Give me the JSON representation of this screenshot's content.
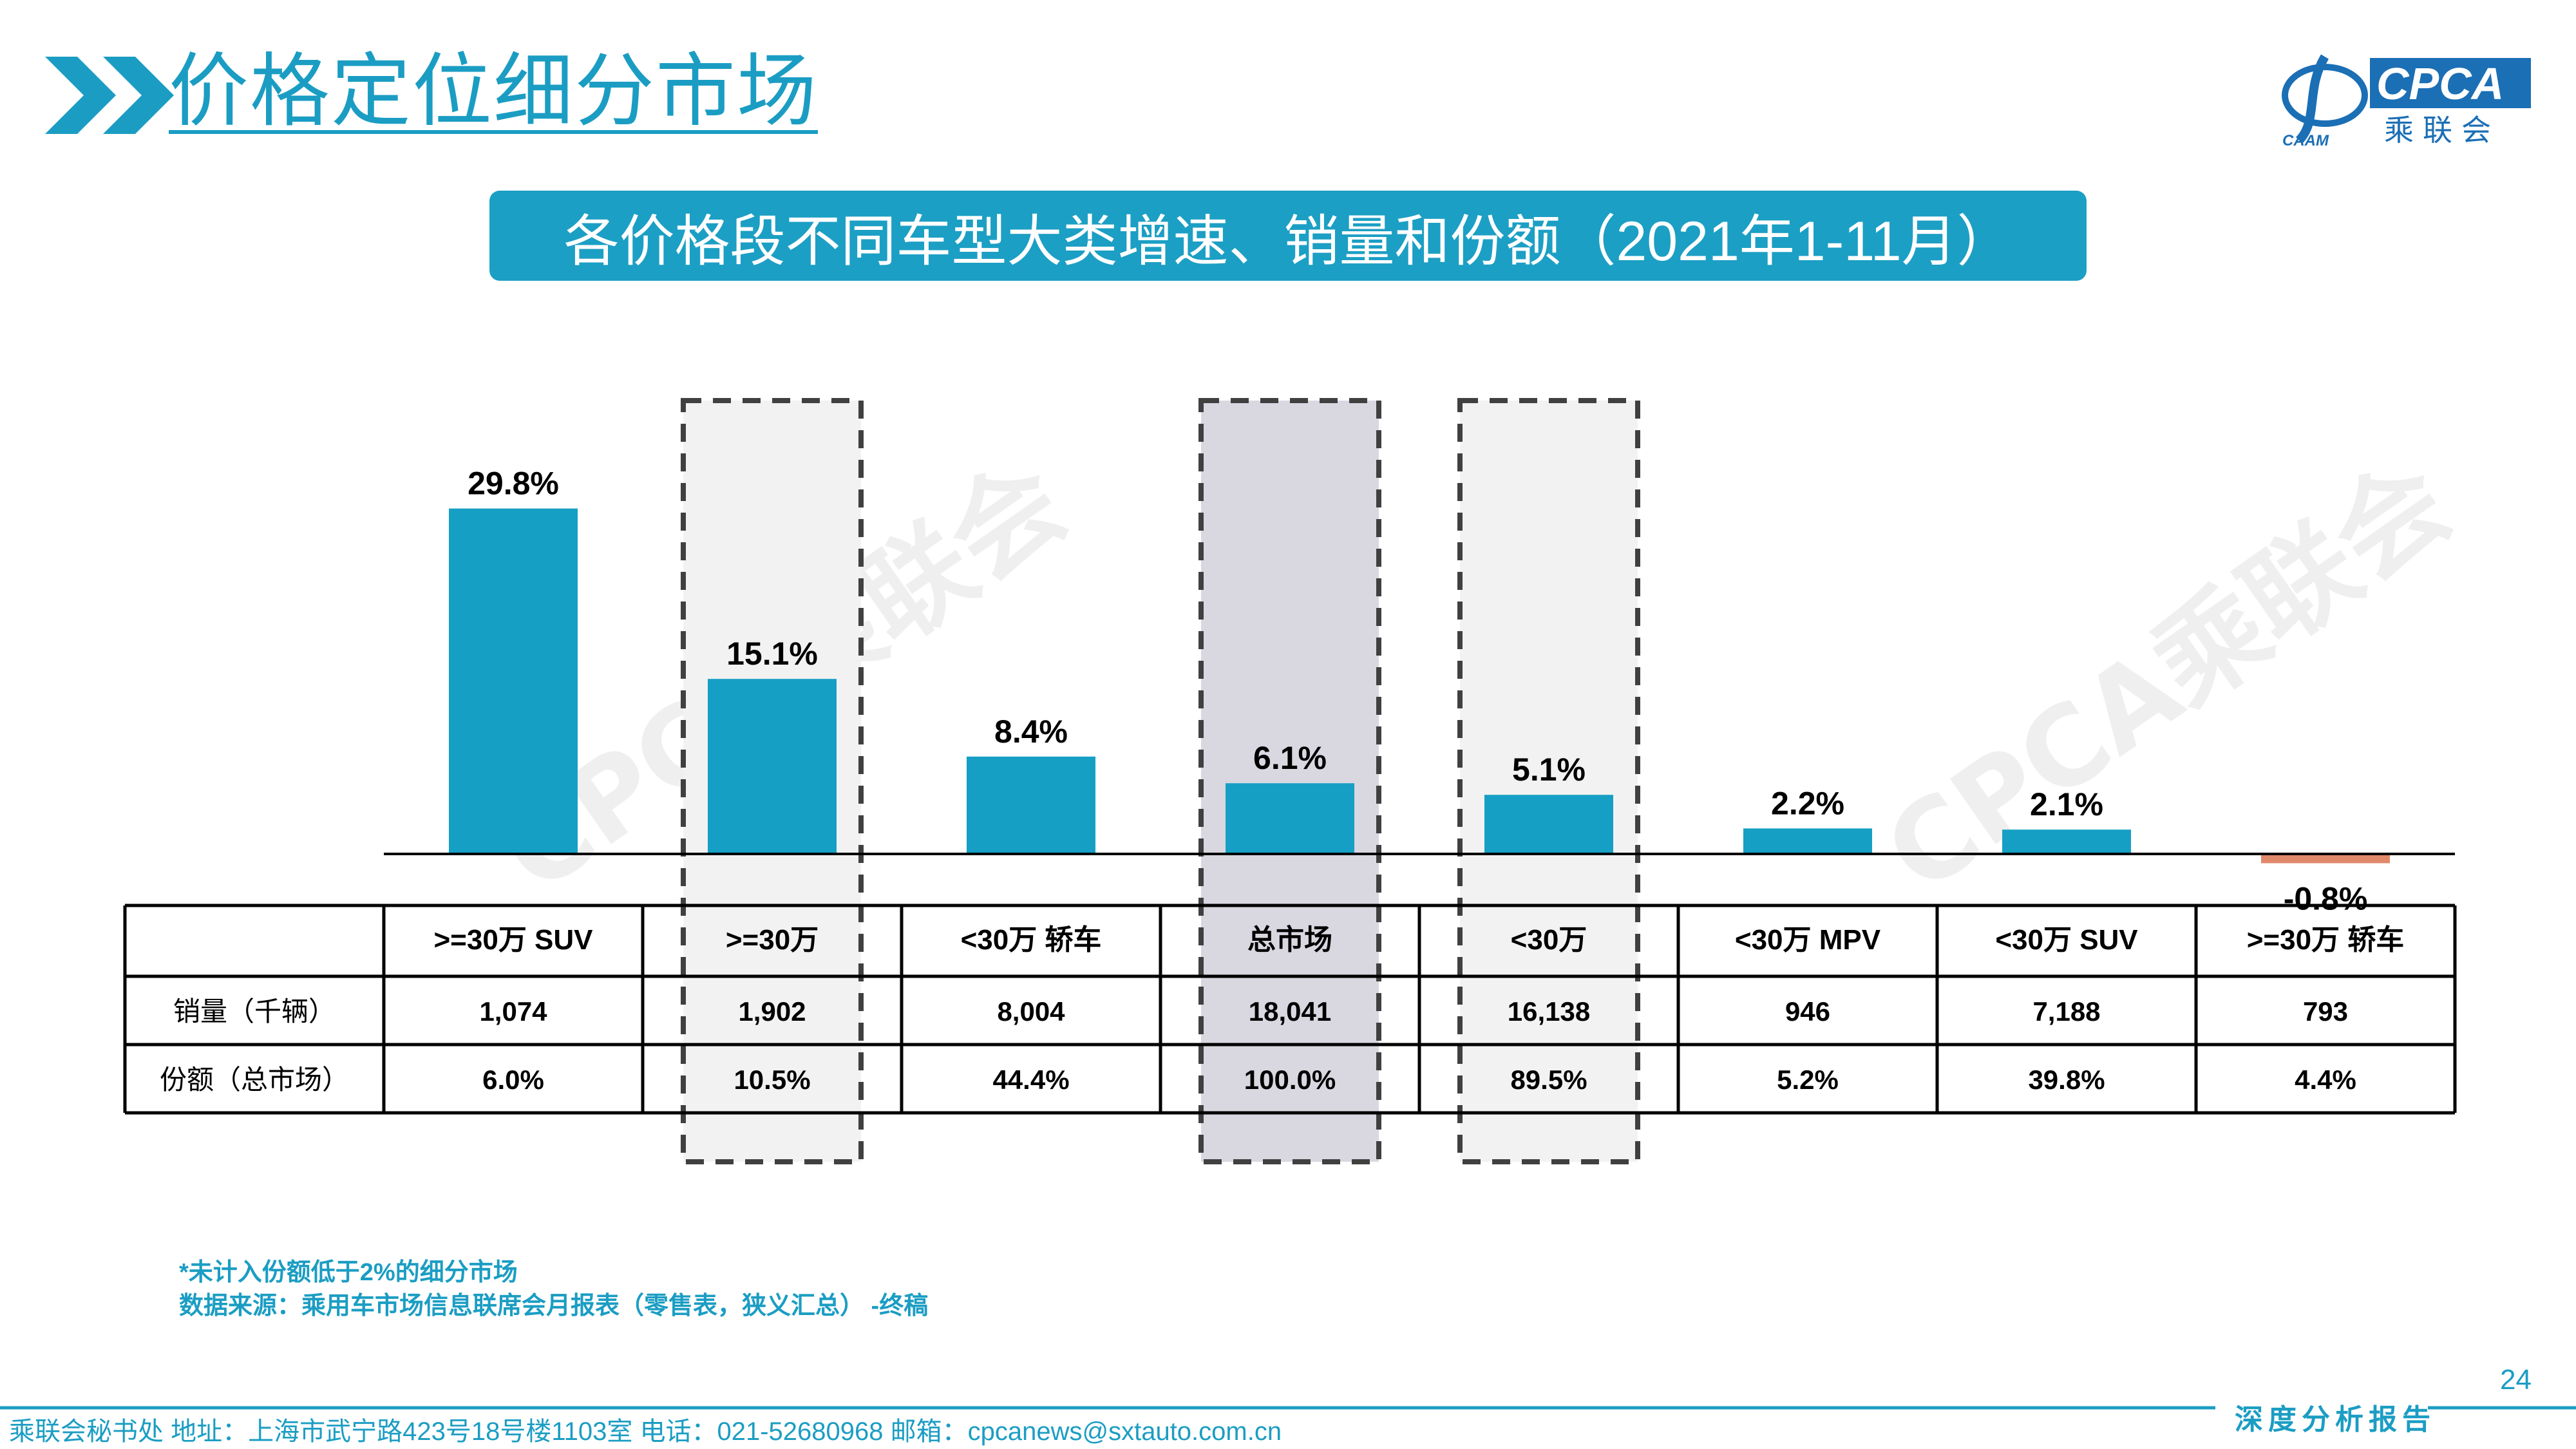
{
  "header": {
    "title": "价格定位细分市场",
    "logo_text": "CPCA",
    "logo_subtext": "乘联会",
    "logo_mark_text": "CAAM"
  },
  "banner": {
    "title": "各价格段不同车型大类增速、销量和份额（2021年1-11月）"
  },
  "watermark": {
    "text": "CPCA乘联会"
  },
  "colors": {
    "accent": "#1b9dc3",
    "bar_positive": "#169fc4",
    "bar_negative": "#e0896a",
    "highlight_fill": "#d9d8e1",
    "light_fill": "#f2f2f2",
    "dash": "#404040"
  },
  "chart_data": {
    "type": "bar",
    "categories": [
      ">=30万 SUV",
      ">=30万",
      "<30万 轿车",
      "总市场",
      "<30万",
      "<30万 MPV",
      "<30万 SUV",
      ">=30万 轿车"
    ],
    "values": [
      29.8,
      15.1,
      8.4,
      6.1,
      5.1,
      2.2,
      2.1,
      -0.8
    ],
    "value_labels": [
      "29.8%",
      "15.1%",
      "8.4%",
      "6.1%",
      "5.1%",
      "2.2%",
      "2.1%",
      "-0.8%"
    ],
    "highlight_categories": [
      ">=30万",
      "总市场",
      "<30万"
    ],
    "strong_highlight": "总市场",
    "table": {
      "rows": [
        {
          "label": "销量（千辆）",
          "values": [
            "1,074",
            "1,902",
            "8,004",
            "18,041",
            "16,138",
            "946",
            "7,188",
            "793"
          ]
        },
        {
          "label": "份额（总市场）",
          "values": [
            "6.0%",
            "10.5%",
            "44.4%",
            "100.0%",
            "89.5%",
            "5.2%",
            "39.8%",
            "4.4%"
          ]
        }
      ]
    }
  },
  "footnotes": {
    "note": "*未计入份额低于2%的细分市场",
    "source": "数据来源：乘用车市场信息联席会月报表（零售表，狭义汇总） -终稿"
  },
  "footer": {
    "page_number": "24",
    "contact": "乘联会秘书处   地址：上海市武宁路423号18号楼1103室   电话：021-52680968   邮箱：cpcanews@sxtauto.com.cn",
    "report": "深度分析报告"
  }
}
